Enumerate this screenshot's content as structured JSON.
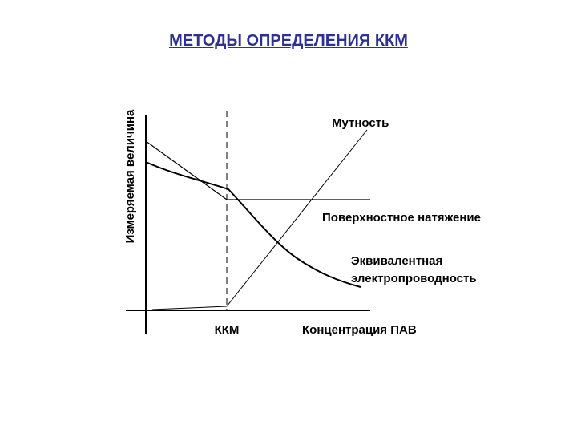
{
  "title": "МЕТОДЫ ОПРЕДЕЛЕНИЯ ККМ",
  "diagram": {
    "y_axis_label": "Измеряемая величина",
    "x_axis_label": "Концентрация ПАВ",
    "cmc_label": "ККМ",
    "curves": {
      "turbidity": "Мутность",
      "surface_tension": "Поверхностное натяжение",
      "conductivity_line1": "Эквивалентная",
      "conductivity_line2": "электропроводность"
    },
    "colors": {
      "title": "#2e3192",
      "lines": "#000000"
    }
  }
}
